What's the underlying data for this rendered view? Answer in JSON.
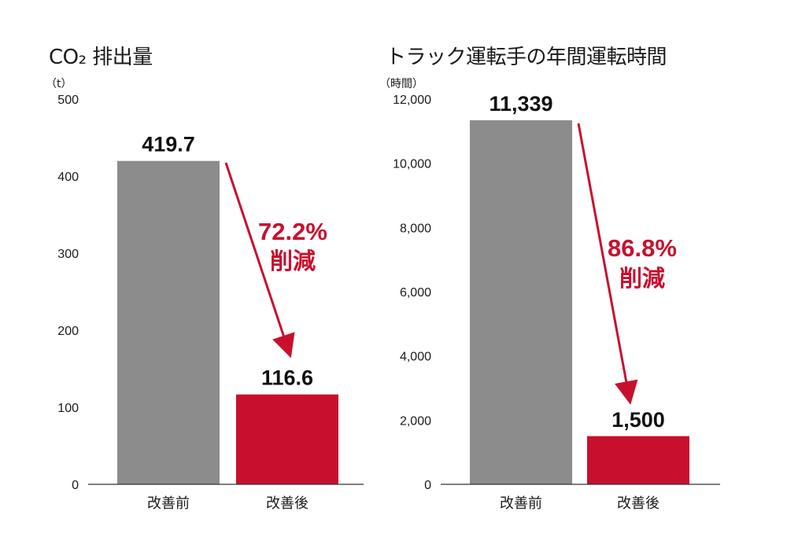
{
  "chart_data": [
    {
      "type": "bar",
      "title": "CO₂ 排出量",
      "unit": "（t）",
      "categories": [
        "改善前",
        "改善後"
      ],
      "values": [
        419.7,
        116.6
      ],
      "value_labels": [
        "419.7",
        "116.6"
      ],
      "ylim": [
        0,
        500
      ],
      "yticks": [
        "0",
        "100",
        "200",
        "300",
        "400",
        "500"
      ],
      "ytick_values": [
        0,
        100,
        200,
        300,
        400,
        500
      ],
      "colors": [
        "#8c8c8c",
        "#c8102e"
      ],
      "annotation": {
        "percent": "72.2%",
        "text": "削減",
        "color": "#c8102e"
      },
      "grid": false
    },
    {
      "type": "bar",
      "title": "トラック運転手の年間運転時間",
      "unit": "（時間）",
      "categories": [
        "改善前",
        "改善後"
      ],
      "values": [
        11339,
        1500
      ],
      "value_labels": [
        "11,339",
        "1,500"
      ],
      "ylim": [
        0,
        12000
      ],
      "yticks": [
        "0",
        "2,000",
        "4,000",
        "6,000",
        "8,000",
        "10,000",
        "12,000"
      ],
      "ytick_values": [
        0,
        2000,
        4000,
        6000,
        8000,
        10000,
        12000
      ],
      "colors": [
        "#8c8c8c",
        "#c8102e"
      ],
      "annotation": {
        "percent": "86.8%",
        "text": "削減",
        "color": "#c8102e"
      },
      "grid": false
    }
  ]
}
